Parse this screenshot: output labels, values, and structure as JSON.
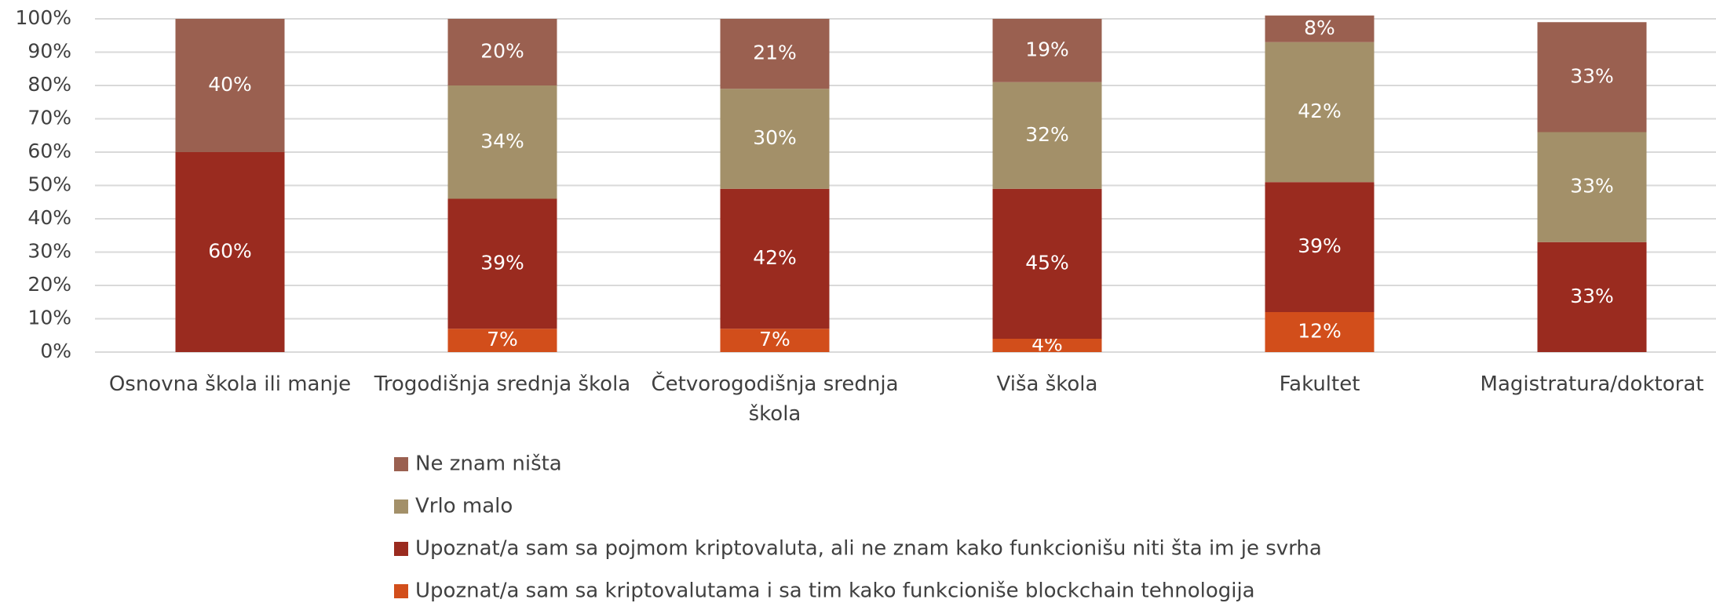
{
  "chart_data": {
    "type": "stacked_bar",
    "categories": [
      "Osnovna škola ili manje",
      "Trogodišnja srednja škola",
      "Četvorogodišnja srednja škola",
      "Viša škola",
      "Fakultet",
      "Magistratura/doktorat"
    ],
    "series": [
      {
        "name": "Ne znam ništa",
        "color": "#9a6050",
        "values": [
          40,
          20,
          21,
          19,
          8,
          33
        ],
        "value_labels": [
          "40%",
          "20%",
          "21%",
          "19%",
          "8%",
          "33%"
        ]
      },
      {
        "name": "Vrlo malo",
        "color": "#a39069",
        "values": [
          0,
          34,
          30,
          32,
          42,
          33
        ],
        "value_labels": [
          null,
          "34%",
          "30%",
          "32%",
          "42%",
          "33%"
        ]
      },
      {
        "name": "Upoznat/a sam sa pojmom kriptovaluta, ali ne znam kako funkcionišu niti šta im je svrha",
        "color": "#9a2b1f",
        "values": [
          60,
          39,
          42,
          45,
          39,
          33
        ],
        "value_labels": [
          "60%",
          "39%",
          "42%",
          "45%",
          "39%",
          "33%"
        ]
      },
      {
        "name": "Upoznat/a sam sa kriptovalutama i sa tim kako funkcioniše blockchain tehnologija",
        "color": "#d24e1b",
        "values": [
          0,
          7,
          7,
          4,
          12,
          0
        ],
        "value_labels": [
          null,
          "7%",
          "7%",
          "4%",
          "12%",
          null
        ]
      }
    ],
    "ylim": [
      0,
      100
    ],
    "yticks": [
      {
        "value": 0,
        "label": "0%"
      },
      {
        "value": 10,
        "label": "10%"
      },
      {
        "value": 20,
        "label": "20%"
      },
      {
        "value": 30,
        "label": "30%"
      },
      {
        "value": 40,
        "label": "40%"
      },
      {
        "value": 50,
        "label": "50%"
      },
      {
        "value": 60,
        "label": "60%"
      },
      {
        "value": 70,
        "label": "70%"
      },
      {
        "value": 80,
        "label": "80%"
      },
      {
        "value": 90,
        "label": "90%"
      },
      {
        "value": 100,
        "label": "100%"
      }
    ],
    "grid": true,
    "legend": "bottom"
  }
}
